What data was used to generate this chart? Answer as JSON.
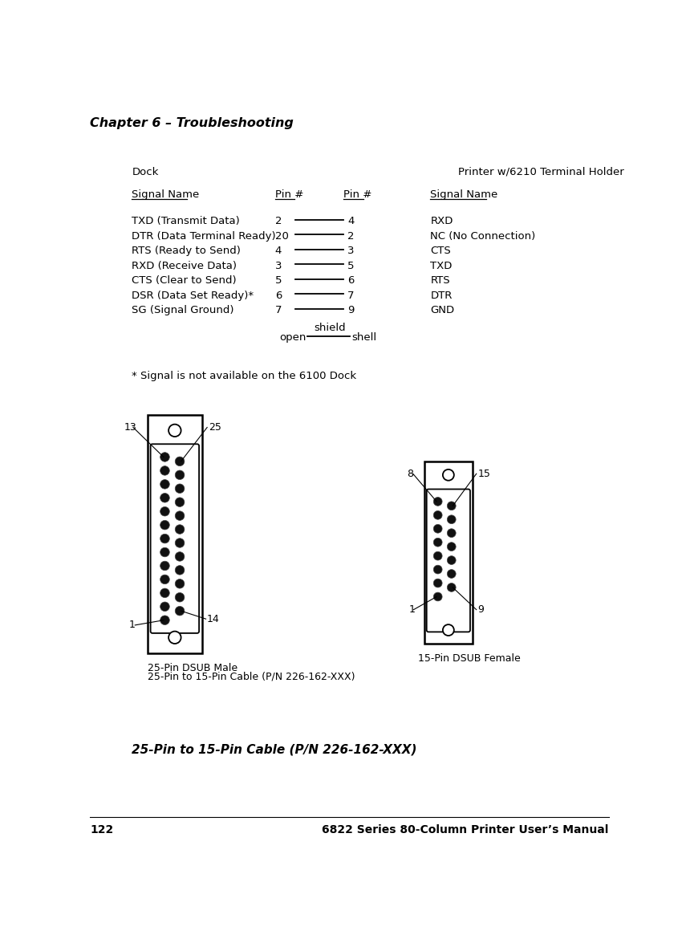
{
  "chapter_header": "Chapter 6 – Troubleshooting",
  "page_num": "122",
  "manual_title": "6822 Series 80-Column Printer User’s Manual",
  "dock_label": "Dock",
  "printer_label": "Printer w/6210 Terminal Holder",
  "col_headers": [
    "Signal Name",
    "Pin #",
    "Pin #",
    "Signal Name"
  ],
  "rows": [
    [
      "TXD (Transmit Data)",
      "2",
      "4",
      "RXD"
    ],
    [
      "DTR (Data Terminal Ready)",
      "20",
      "2",
      "NC (No Connection)"
    ],
    [
      "RTS (Ready to Send)",
      "4",
      "3",
      "CTS"
    ],
    [
      "RXD (Receive Data)",
      "3",
      "5",
      "TXD"
    ],
    [
      "CTS (Clear to Send)",
      "5",
      "6",
      "RTS"
    ],
    [
      "DSR (Data Set Ready)*",
      "6",
      "7",
      "DTR"
    ],
    [
      "SG (Signal Ground)",
      "7",
      "9",
      "GND"
    ]
  ],
  "shield_label": "shield",
  "open_label": "open",
  "shell_label": "shell",
  "footnote": "* Signal is not available on the 6100 Dock",
  "cable_title": "25-Pin to 15-Pin Cable (P/N 226-162-XXX)",
  "dsub25_label1": "25-Pin DSUB Male",
  "dsub25_label2": "25-Pin to 15-Pin Cable (P/N 226-162-XXX)",
  "dsub15_label": "15-Pin DSUB Female",
  "bg_color": "#ffffff",
  "text_color": "#000000"
}
